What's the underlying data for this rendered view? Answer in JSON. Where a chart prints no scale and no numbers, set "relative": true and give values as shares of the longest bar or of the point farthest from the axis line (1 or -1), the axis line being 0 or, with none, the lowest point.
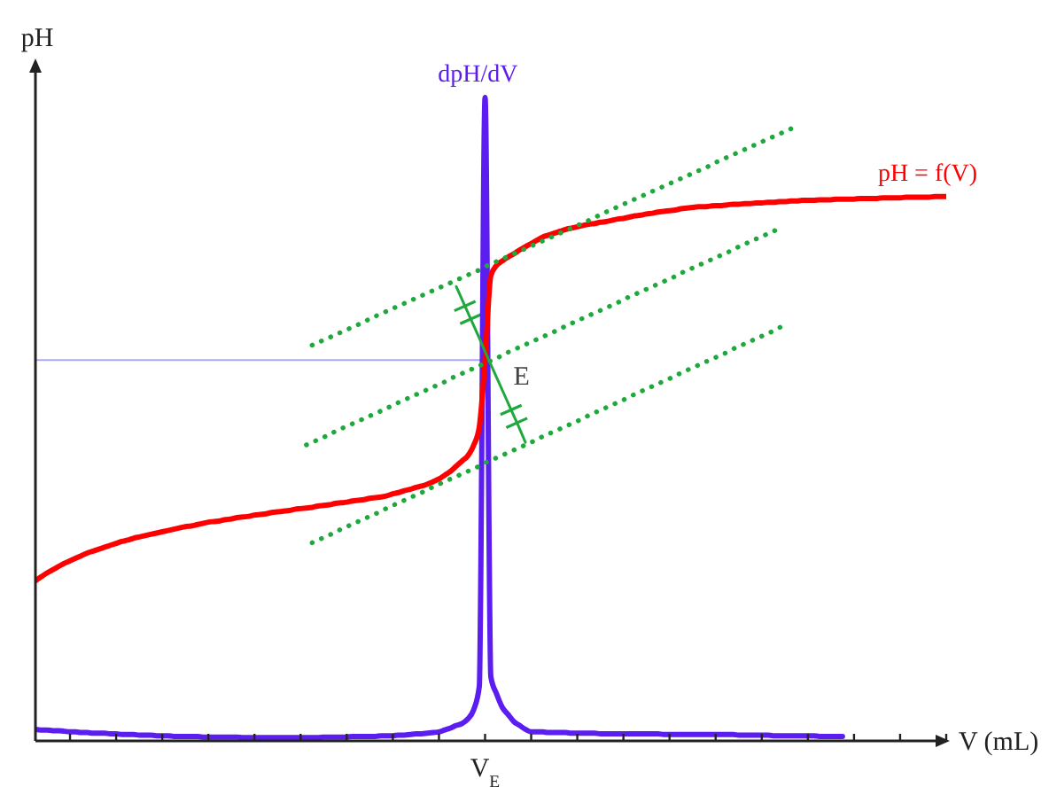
{
  "chart_data": {
    "type": "line",
    "relative": true,
    "xlabel": "V (mL)",
    "ylabel": "pH",
    "annotations": [
      "E",
      "V$_{E}$"
    ],
    "categories": [
      null,
      null,
      null,
      null,
      null,
      null,
      null,
      null,
      null,
      null,
      null,
      null,
      null,
      null,
      null,
      null,
      null,
      null,
      null,
      null,
      null,
      null,
      null,
      null,
      null,
      null,
      null,
      null,
      null,
      null,
      null,
      null,
      null,
      null,
      null,
      null,
      null,
      null,
      null,
      null,
      null,
      null,
      null,
      null,
      null,
      null,
      null,
      null,
      null,
      null,
      null,
      null,
      null,
      null,
      null,
      null,
      null,
      null,
      null,
      null,
      null,
      null,
      null,
      null,
      null,
      null,
      null,
      null,
      null,
      null,
      null,
      null,
      null,
      null,
      null,
      null,
      null,
      null,
      null,
      null,
      null,
      null,
      null,
      null,
      null,
      null,
      null,
      null,
      null,
      null,
      null,
      null,
      null,
      null,
      null,
      null,
      null,
      null,
      null,
      null,
      null,
      null,
      null,
      null,
      null,
      null,
      null,
      null,
      null,
      null,
      null,
      null,
      null,
      null,
      null,
      null,
      null,
      null,
      null,
      null,
      null,
      null,
      null,
      null,
      null,
      null,
      null,
      null,
      null,
      null,
      null,
      null,
      null,
      null,
      null,
      null,
      null,
      null,
      null,
      null,
      null,
      null,
      null,
      null,
      null,
      null,
      null,
      null,
      null,
      null,
      null,
      null,
      null,
      null,
      null,
      null,
      null,
      null,
      null
    ],
    "series": [
      {
        "color": "#a8a8ff",
        "values": [
          0.592,
          0.592,
          0.592,
          0.592,
          0.592,
          0.592,
          0.592,
          0.592,
          0.592,
          0.592,
          0.592,
          0.592,
          0.592,
          0.592,
          0.592,
          0.592,
          0.592,
          0.592,
          0.592,
          0.592,
          0.592,
          0.592,
          0.592,
          0.592,
          0.592,
          0.592,
          0.592,
          0.592,
          0.592,
          0.592,
          0.592,
          0.592,
          0.592,
          0.592,
          0.592,
          0.592,
          0.592,
          0.592,
          0.592,
          0.592,
          0.592,
          0.592,
          0.592,
          0.592,
          0.592,
          0.592,
          0.592,
          0.592,
          0.592,
          0.592,
          0.592,
          0.592,
          0.592,
          0.592,
          0.592,
          0.592,
          0.592,
          0.592,
          0.592,
          0.592,
          0.592,
          0.592,
          0.592,
          0.592,
          0.592,
          0.592,
          0.592,
          0.592,
          0.592,
          0.592,
          0.592,
          0.592,
          0.592,
          0.592,
          0.592,
          0.592,
          0.592,
          0.592,
          0.592,
          null,
          null,
          null,
          null,
          null,
          null,
          null,
          null,
          null,
          null,
          null,
          null,
          null,
          null,
          null,
          null,
          null,
          null,
          null,
          null,
          null,
          null,
          null,
          null,
          null,
          null,
          null,
          null,
          null,
          null,
          null,
          null,
          null,
          null,
          null,
          null,
          null,
          null,
          null,
          null,
          null,
          null,
          null,
          null,
          null,
          null,
          null,
          null,
          null,
          null,
          null,
          null,
          null,
          null,
          null,
          null,
          null,
          null,
          null,
          null,
          null,
          null,
          null,
          null,
          null,
          null,
          null,
          null,
          null,
          null,
          null,
          null,
          null,
          null,
          null,
          null,
          null,
          null,
          null,
          null
        ]
      },
      {
        "name": "dpH/dV",
        "color": "#5b1df0",
        "values": [
          0.018,
          0.017,
          0.017,
          0.016,
          0.016,
          0.015,
          0.014,
          0.014,
          0.013,
          0.013,
          0.012,
          0.012,
          0.012,
          0.011,
          0.011,
          0.01,
          0.01,
          0.01,
          0.009,
          0.009,
          0.009,
          0.008,
          0.008,
          0.008,
          0.007,
          0.007,
          0.007,
          0.007,
          0.007,
          0.006,
          0.006,
          0.006,
          0.006,
          0.006,
          0.006,
          0.006,
          0.005,
          0.005,
          0.005,
          0.005,
          0.005,
          0.005,
          0.005,
          0.005,
          0.005,
          0.005,
          0.005,
          0.005,
          0.005,
          0.005,
          0.006,
          0.006,
          0.006,
          0.006,
          0.006,
          0.007,
          0.007,
          0.007,
          0.007,
          0.007,
          0.008,
          0.008,
          0.008,
          0.009,
          0.009,
          0.01,
          0.011,
          0.011,
          0.012,
          0.013,
          0.014,
          0.017,
          0.02,
          0.024,
          0.027,
          0.034,
          0.048,
          0.085,
          1,
          0.1,
          0.073,
          0.052,
          0.041,
          0.03,
          0.024,
          0.018,
          0.014,
          0.014,
          0.014,
          0.013,
          0.013,
          0.013,
          0.013,
          0.012,
          0.012,
          0.012,
          0.012,
          0.012,
          0.011,
          0.011,
          0.011,
          0.011,
          0.011,
          0.011,
          0.011,
          0.011,
          0.011,
          0.011,
          0.011,
          0.01,
          0.01,
          0.01,
          0.01,
          0.01,
          0.01,
          0.01,
          0.01,
          0.01,
          0.01,
          0.01,
          0.01,
          0.01,
          0.009,
          0.009,
          0.009,
          0.009,
          0.009,
          0.009,
          0.008,
          0.008,
          0.008,
          0.008,
          0.008,
          0.008,
          0.008,
          0.008,
          0.007,
          0.007,
          0.007,
          0.007,
          0.007,
          null,
          null,
          null,
          null,
          null,
          null,
          null,
          null,
          null,
          null,
          null,
          null,
          null,
          null,
          null,
          null,
          null,
          null
        ]
      },
      {
        "name": "pH = f(V)",
        "color": "#ff0000",
        "values": [
          0.249,
          0.255,
          0.261,
          0.266,
          0.271,
          0.276,
          0.28,
          0.284,
          0.288,
          0.292,
          0.295,
          0.298,
          0.301,
          0.304,
          0.307,
          0.31,
          0.312,
          0.315,
          0.317,
          0.319,
          0.321,
          0.323,
          0.325,
          0.327,
          0.329,
          0.331,
          0.333,
          0.334,
          0.336,
          0.338,
          0.34,
          0.341,
          0.342,
          0.344,
          0.345,
          0.347,
          0.348,
          0.349,
          0.351,
          0.352,
          0.353,
          0.355,
          0.356,
          0.357,
          0.358,
          0.36,
          0.361,
          0.362,
          0.363,
          0.365,
          0.366,
          0.367,
          0.369,
          0.37,
          0.371,
          0.373,
          0.374,
          0.375,
          0.377,
          0.378,
          0.379,
          0.381,
          0.384,
          0.386,
          0.389,
          0.391,
          0.394,
          0.396,
          0.399,
          0.403,
          0.407,
          0.413,
          0.419,
          0.427,
          0.435,
          0.443,
          0.459,
          0.488,
          0.592,
          0.723,
          0.739,
          0.746,
          0.752,
          0.757,
          0.763,
          0.768,
          0.773,
          0.778,
          0.783,
          0.786,
          0.789,
          0.792,
          0.795,
          0.797,
          0.799,
          0.801,
          0.803,
          0.804,
          0.806,
          0.807,
          0.809,
          0.811,
          0.812,
          0.814,
          0.816,
          0.817,
          0.819,
          0.82,
          0.822,
          0.823,
          0.824,
          0.825,
          0.827,
          0.828,
          0.829,
          0.83,
          0.83,
          0.831,
          0.832,
          0.832,
          0.833,
          0.834,
          0.834,
          0.835,
          0.835,
          0.836,
          0.836,
          0.837,
          0.837,
          0.838,
          0.838,
          0.839,
          0.839,
          0.84,
          0.84,
          0.84,
          0.841,
          0.841,
          0.841,
          0.842,
          0.842,
          0.842,
          0.842,
          0.843,
          0.843,
          0.843,
          0.843,
          0.844,
          0.844,
          0.844,
          0.844,
          0.845,
          0.845,
          0.845,
          0.845,
          0.845,
          0.846,
          0.846,
          0.846
        ]
      },
      {
        "color": "#1fa83c",
        "line_style": "dotted",
        "values": [
          null,
          null,
          null,
          null,
          null,
          null,
          null,
          null,
          null,
          null,
          null,
          null,
          null,
          null,
          null,
          null,
          null,
          null,
          null,
          null,
          null,
          null,
          null,
          null,
          null,
          null,
          null,
          null,
          null,
          null,
          null,
          null,
          null,
          null,
          null,
          null,
          null,
          null,
          null,
          null,
          null,
          null,
          null,
          null,
          null,
          null,
          null,
          null,
          0.615,
          0.619,
          0.623,
          0.627,
          0.631,
          0.635,
          0.639,
          0.643,
          0.647,
          0.651,
          0.656,
          0.66,
          0.664,
          0.668,
          0.672,
          0.676,
          0.68,
          0.684,
          0.688,
          0.692,
          0.696,
          0.7,
          0.704,
          0.708,
          0.712,
          0.716,
          0.72,
          0.724,
          0.728,
          0.732,
          0.737,
          0.741,
          0.745,
          0.749,
          0.753,
          0.757,
          0.761,
          0.765,
          0.769,
          0.773,
          0.777,
          0.781,
          0.785,
          0.789,
          0.793,
          0.797,
          0.801,
          0.805,
          0.809,
          0.813,
          0.818,
          0.822,
          0.826,
          0.83,
          0.834,
          0.838,
          0.842,
          0.846,
          0.85,
          0.854,
          0.858,
          0.862,
          0.866,
          0.87,
          0.874,
          0.878,
          0.882,
          0.886,
          0.89,
          0.894,
          0.899,
          0.903,
          0.907,
          0.911,
          0.915,
          0.919,
          0.923,
          0.927,
          0.931,
          0.935,
          0.939,
          0.943,
          0.947,
          0.951,
          0.955,
          null,
          null,
          null,
          null,
          null,
          null,
          null,
          null,
          null,
          null,
          null,
          null,
          null,
          null,
          null,
          null,
          null,
          null,
          null,
          null,
          null,
          null,
          null,
          null,
          null,
          null
        ]
      },
      {
        "color": "#1fa83c",
        "line_style": "dotted",
        "values": [
          null,
          null,
          null,
          null,
          null,
          null,
          null,
          null,
          null,
          null,
          null,
          null,
          null,
          null,
          null,
          null,
          null,
          null,
          null,
          null,
          null,
          null,
          null,
          null,
          null,
          null,
          null,
          null,
          null,
          null,
          null,
          null,
          null,
          null,
          null,
          null,
          null,
          null,
          null,
          null,
          null,
          null,
          null,
          null,
          null,
          null,
          null,
          0.46,
          0.464,
          0.468,
          0.472,
          0.476,
          0.481,
          0.485,
          0.489,
          0.493,
          0.497,
          0.501,
          0.505,
          0.509,
          0.513,
          0.517,
          0.522,
          0.526,
          0.53,
          0.534,
          0.538,
          0.542,
          0.546,
          0.55,
          0.554,
          0.558,
          0.563,
          0.567,
          0.571,
          0.575,
          0.579,
          0.583,
          0.587,
          0.591,
          0.595,
          0.599,
          0.604,
          0.608,
          0.612,
          0.616,
          0.62,
          0.624,
          0.628,
          0.632,
          0.636,
          0.64,
          0.645,
          0.649,
          0.653,
          0.657,
          0.661,
          0.665,
          0.669,
          0.673,
          0.677,
          0.681,
          0.686,
          0.69,
          0.694,
          0.698,
          0.702,
          0.706,
          0.71,
          0.714,
          0.718,
          0.722,
          0.727,
          0.731,
          0.735,
          0.739,
          0.743,
          0.747,
          0.751,
          0.755,
          0.759,
          0.763,
          0.768,
          0.772,
          0.776,
          0.78,
          0.784,
          0.788,
          0.792,
          0.796,
          null,
          null,
          null,
          null,
          null,
          null,
          null,
          null,
          null,
          null,
          null,
          null,
          null,
          null,
          null,
          null,
          null,
          null,
          null,
          null,
          null,
          null,
          null,
          null,
          null,
          null,
          null,
          null,
          null
        ]
      },
      {
        "color": "#1fa83c",
        "line_style": "dotted",
        "values": [
          null,
          null,
          null,
          null,
          null,
          null,
          null,
          null,
          null,
          null,
          null,
          null,
          null,
          null,
          null,
          null,
          null,
          null,
          null,
          null,
          null,
          null,
          null,
          null,
          null,
          null,
          null,
          null,
          null,
          null,
          null,
          null,
          null,
          null,
          null,
          null,
          null,
          null,
          null,
          null,
          null,
          null,
          null,
          null,
          null,
          null,
          null,
          null,
          0.308,
          0.312,
          0.316,
          0.32,
          0.324,
          0.329,
          0.333,
          0.337,
          0.341,
          0.345,
          0.349,
          0.353,
          0.357,
          0.362,
          0.366,
          0.37,
          0.374,
          0.378,
          0.382,
          0.386,
          0.39,
          0.395,
          0.399,
          0.403,
          0.407,
          0.411,
          0.415,
          0.419,
          0.423,
          0.427,
          0.432,
          0.436,
          0.44,
          0.444,
          0.448,
          0.452,
          0.456,
          0.46,
          0.464,
          0.469,
          0.473,
          0.477,
          0.481,
          0.485,
          0.489,
          0.493,
          0.497,
          0.501,
          0.506,
          0.51,
          0.514,
          0.518,
          0.522,
          0.526,
          0.53,
          0.534,
          0.539,
          0.543,
          0.547,
          0.551,
          0.555,
          0.559,
          0.563,
          0.567,
          0.572,
          0.576,
          0.58,
          0.584,
          0.588,
          0.592,
          0.596,
          0.6,
          0.604,
          0.609,
          0.613,
          0.617,
          0.621,
          0.625,
          0.629,
          0.633,
          0.637,
          0.642,
          0.646,
          null,
          null,
          null,
          null,
          null,
          null,
          null,
          null,
          null,
          null,
          null,
          null,
          null,
          null,
          null,
          null,
          null,
          null,
          null,
          null,
          null,
          null,
          null,
          null,
          null,
          null,
          null,
          null
        ]
      },
      {
        "color": "#1fa83c",
        "values": [
          null,
          null,
          null,
          null,
          null,
          null,
          null,
          null,
          null,
          null,
          null,
          null,
          null,
          null,
          null,
          null,
          null,
          null,
          null,
          null,
          null,
          null,
          null,
          null,
          null,
          null,
          null,
          null,
          null,
          null,
          null,
          null,
          null,
          null,
          null,
          null,
          null,
          null,
          null,
          null,
          null,
          null,
          null,
          null,
          null,
          null,
          null,
          null,
          null,
          null,
          null,
          null,
          null,
          null,
          null,
          null,
          null,
          null,
          null,
          null,
          null,
          null,
          null,
          null,
          null,
          null,
          null,
          null,
          null,
          null,
          null,
          null,
          null,
          0.706,
          0.686,
          0.666,
          0.646,
          0.626,
          0.605,
          0.585,
          0.565,
          0.545,
          0.525,
          0.505,
          0.485,
          0.464,
          null,
          null,
          null,
          null,
          null,
          null,
          null,
          null,
          null,
          null,
          null,
          null,
          null,
          null,
          null,
          null,
          null,
          null,
          null,
          null,
          null,
          null,
          null,
          null,
          null,
          null,
          null,
          null,
          null,
          null,
          null,
          null,
          null,
          null,
          null,
          null,
          null,
          null,
          null,
          null,
          null,
          null,
          null,
          null,
          null,
          null,
          null,
          null,
          null,
          null,
          null,
          null,
          null,
          null,
          null,
          null,
          null,
          null,
          null,
          null,
          null,
          null,
          null,
          null,
          null,
          null,
          null,
          null,
          null,
          null,
          null,
          null,
          null
        ]
      }
    ]
  }
}
